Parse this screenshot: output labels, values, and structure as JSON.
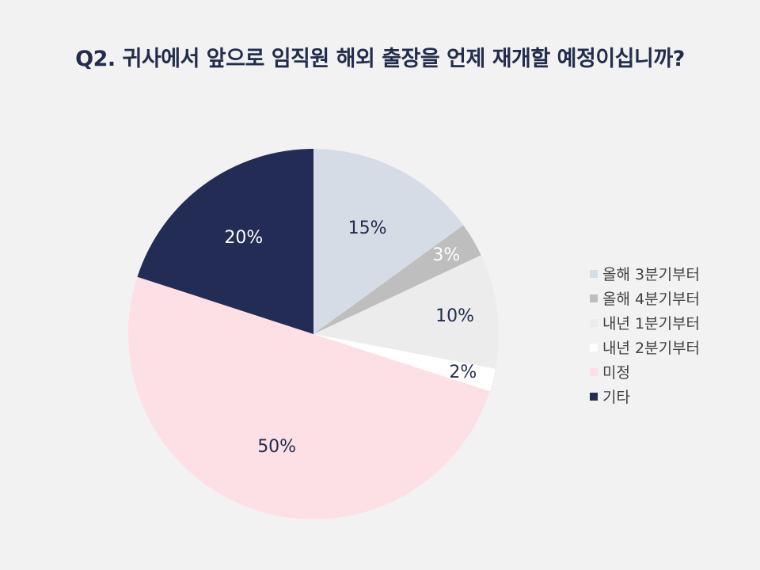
{
  "chart_data": {
    "type": "pie",
    "title": "Q2. 귀사에서 앞으로 임직원 해외 출장을 언제 재개할 예정이십니까?",
    "start_angle_deg": 0,
    "direction": "clockwise",
    "legend_position": "right",
    "slices": [
      {
        "label": "올해 3분기부터",
        "value": 15,
        "display": "15%",
        "color": "#d6dce6",
        "label_color": "#222c4d"
      },
      {
        "label": "올해 4분기부터",
        "value": 3,
        "display": "3%",
        "color": "#bebebe",
        "label_color": "#ffffff"
      },
      {
        "label": "내년 1분기부터",
        "value": 10,
        "display": "10%",
        "color": "#ececec",
        "label_color": "#222c4d"
      },
      {
        "label": "내년 2분기부터",
        "value": 2,
        "display": "2%",
        "color": "#ffffff",
        "label_color": "#222c4d"
      },
      {
        "label": "미정",
        "value": 50,
        "display": "50%",
        "color": "#fde0e6",
        "label_color": "#222c4d"
      },
      {
        "label": "기타",
        "value": 20,
        "display": "20%",
        "color": "#222c54",
        "label_color": "#ffffff"
      }
    ]
  }
}
